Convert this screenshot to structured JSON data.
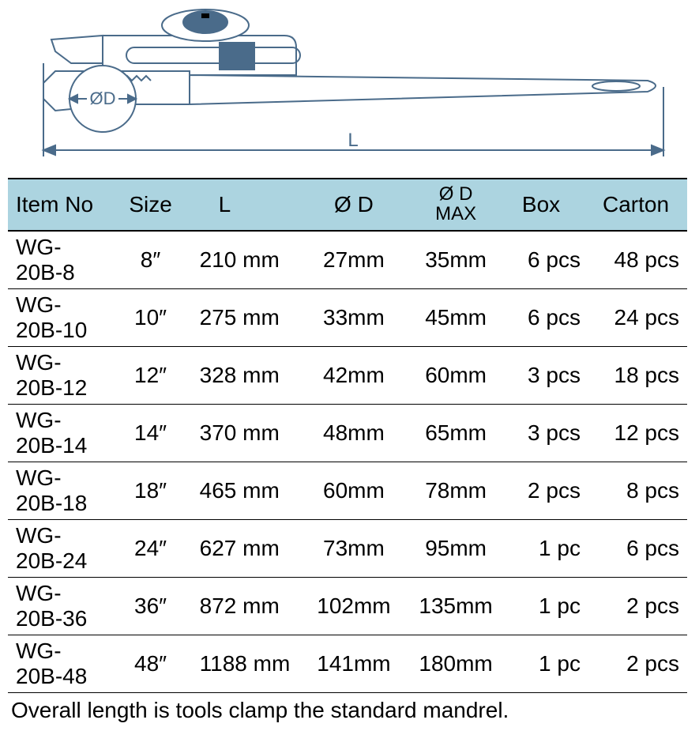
{
  "diagram": {
    "label_L": "L",
    "label_D": "ØD",
    "stroke_color": "#4a6b8a",
    "text_color": "#4a6b8a"
  },
  "table": {
    "header_bg": "#acd4e0",
    "border_color": "#000000",
    "columns": [
      {
        "label": "Item No",
        "key": "item"
      },
      {
        "label": "Size",
        "key": "size"
      },
      {
        "label": "L",
        "key": "l"
      },
      {
        "label": "Ø D",
        "key": "d"
      },
      {
        "label_line1": "Ø D",
        "label_line2": "MAX",
        "key": "dmax"
      },
      {
        "label": "Box",
        "key": "box"
      },
      {
        "label": "Carton",
        "key": "carton"
      }
    ],
    "rows": [
      {
        "item": "WG-20B-8",
        "size": "8″",
        "l": "210 mm",
        "d": "27mm",
        "dmax": "35mm",
        "box": "6 pcs",
        "carton": "48 pcs"
      },
      {
        "item": "WG-20B-10",
        "size": "10″",
        "l": "275 mm",
        "d": "33mm",
        "dmax": "45mm",
        "box": "6 pcs",
        "carton": "24 pcs"
      },
      {
        "item": "WG-20B-12",
        "size": "12″",
        "l": "328 mm",
        "d": "42mm",
        "dmax": "60mm",
        "box": "3 pcs",
        "carton": "18 pcs"
      },
      {
        "item": "WG-20B-14",
        "size": "14″",
        "l": "370 mm",
        "d": "48mm",
        "dmax": "65mm",
        "box": "3 pcs",
        "carton": "12 pcs"
      },
      {
        "item": "WG-20B-18",
        "size": "18″",
        "l": "465 mm",
        "d": "60mm",
        "dmax": "78mm",
        "box": "2 pcs",
        "carton": "8 pcs"
      },
      {
        "item": "WG-20B-24",
        "size": "24″",
        "l": "627 mm",
        "d": "73mm",
        "dmax": "95mm",
        "box": "1 pc",
        "carton": "6 pcs"
      },
      {
        "item": "WG-20B-36",
        "size": "36″",
        "l": "872 mm",
        "d": "102mm",
        "dmax": "135mm",
        "box": "1 pc",
        "carton": "2 pcs"
      },
      {
        "item": "WG-20B-48",
        "size": "48″",
        "l": "1188 mm",
        "d": "141mm",
        "dmax": "180mm",
        "box": "1 pc",
        "carton": "2 pcs"
      }
    ]
  },
  "footnote": "Overall length is tools clamp the standard mandrel."
}
